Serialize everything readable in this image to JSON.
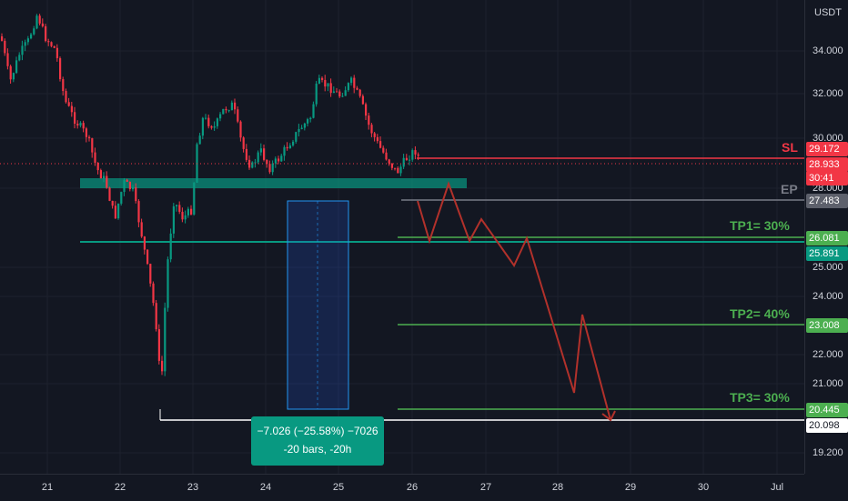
{
  "price_axis": {
    "currency": "USDT",
    "ticks": [
      "34.000",
      "32.000",
      "30.000",
      "28.000",
      "25.000",
      "24.000",
      "22.000",
      "21.000",
      "19.200"
    ]
  },
  "time_axis": {
    "ticks": [
      "21",
      "22",
      "23",
      "24",
      "25",
      "26",
      "27",
      "28",
      "29",
      "30",
      "Jul"
    ]
  },
  "levels": {
    "sl": {
      "text": "SL",
      "price": "29.172",
      "color": "#f23645"
    },
    "last": {
      "price": "28.933",
      "countdown": "30:41",
      "color": "#f23645"
    },
    "ep": {
      "text": "EP",
      "price": "27.483",
      "color": "#787b86"
    },
    "tp1": {
      "text": "TP1= 30%",
      "price": "26.081",
      "color": "#4caf50"
    },
    "support": {
      "price": "25.891",
      "color": "#089981"
    },
    "tp2": {
      "text": "TP2= 40%",
      "price": "23.008",
      "color": "#4caf50"
    },
    "tp3": {
      "text": "TP3= 30%",
      "price": "20.445",
      "color": "#4caf50"
    },
    "low": {
      "price": "20.098",
      "color": "#ffffff"
    }
  },
  "measure": {
    "line1": "−7.026 (−25.58%) −7026",
    "line2": "-20 bars, -20h",
    "color": "#089981"
  },
  "colors": {
    "up": "#089981",
    "down": "#f23645",
    "projection": "#b2312b",
    "background": "#131722"
  }
}
